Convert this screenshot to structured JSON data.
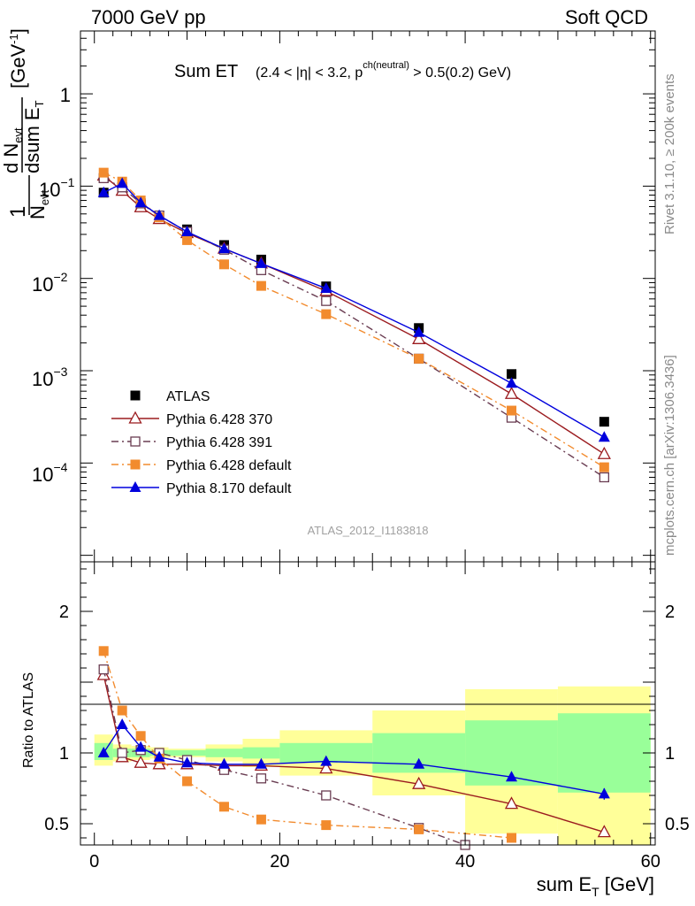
{
  "header": {
    "energy": "7000 GeV pp",
    "category": "Soft QCD"
  },
  "side_text": {
    "rivet": "Rivet 3.1.10, ≥ 200k events",
    "mcplots": "mcplots.cern.ch [arXiv:1306.3436]"
  },
  "chart_data": [
    {
      "type": "scatter",
      "panel": "main",
      "title": "Sum ET",
      "title_selection": "(2.4 < |η| < 3.2, p",
      "title_selection_super": "ch(neutral)",
      "title_selection_tail": " > 0.5(0.2) GeV)",
      "ylabel": "1/N_evt dN_evt/dsum E_T [GeV^-1]",
      "ylabel_parts": {
        "one": "1",
        "n_evt": "N",
        "evt_sub": "evt",
        "d": "d N",
        "dsum": "dsum E",
        "t_sub": "T",
        "unit": "[GeV",
        "unit_sup": "-1",
        "unit_close": "]"
      },
      "yscale": "log",
      "xlim": [
        -1.5,
        60.5
      ],
      "ylim": [
        8.5e-06,
        4.8
      ],
      "y_tick_labels": [
        {
          "value": 1,
          "text": "1"
        },
        {
          "value": 0.1,
          "base": "10",
          "exp": "−1"
        },
        {
          "value": 0.01,
          "base": "10",
          "exp": "−2"
        },
        {
          "value": 0.001,
          "base": "10",
          "exp": "−3"
        },
        {
          "value": 0.0001,
          "base": "10",
          "exp": "−4"
        }
      ],
      "watermark": "ATLAS_2012_I1183818",
      "legend_position": "bottom-left",
      "series": [
        {
          "name": "ATLAS",
          "color": "#000000",
          "marker": "square-filled",
          "line": "none",
          "x": [
            1,
            3,
            5,
            7,
            10,
            14,
            18,
            25,
            35,
            45,
            55
          ],
          "y": [
            0.085,
            0.092,
            0.063,
            0.048,
            0.034,
            0.023,
            0.016,
            0.0082,
            0.0029,
            0.00092,
            0.00028
          ]
        },
        {
          "name": "Pythia 6.428 370",
          "color": "#9b1b1f",
          "marker": "triangle-open",
          "line": "solid",
          "x": [
            1,
            3,
            5,
            7,
            10,
            14,
            18,
            25,
            35,
            45,
            55
          ],
          "y": [
            0.13,
            0.089,
            0.059,
            0.044,
            0.031,
            0.021,
            0.0145,
            0.0073,
            0.0022,
            0.00056,
            0.000125
          ]
        },
        {
          "name": "Pythia 6.428 391",
          "color": "#6a3d52",
          "marker": "square-open",
          "line": "dashdot",
          "x": [
            1,
            3,
            5,
            7,
            10,
            14,
            18,
            25,
            35,
            45,
            55
          ],
          "y": [
            0.122,
            0.097,
            0.065,
            0.048,
            0.032,
            0.0205,
            0.0123,
            0.0057,
            0.00135,
            0.00031,
            7e-05
          ]
        },
        {
          "name": "Pythia 6.428 default",
          "color": "#f28b2e",
          "marker": "square-filled",
          "line": "dashdot",
          "x": [
            1,
            3,
            5,
            7,
            10,
            14,
            18,
            25,
            35,
            45,
            55
          ],
          "y": [
            0.14,
            0.112,
            0.07,
            0.046,
            0.026,
            0.0142,
            0.0083,
            0.0041,
            0.00135,
            0.00037,
            9e-05
          ]
        },
        {
          "name": "Pythia 8.170 default",
          "color": "#0000dd",
          "marker": "triangle-filled",
          "line": "solid",
          "x": [
            1,
            3,
            5,
            7,
            10,
            14,
            18,
            25,
            35,
            45,
            55
          ],
          "y": [
            0.085,
            0.107,
            0.066,
            0.048,
            0.032,
            0.021,
            0.0145,
            0.0078,
            0.0026,
            0.00073,
            0.00019
          ]
        }
      ]
    },
    {
      "type": "scatter",
      "panel": "ratio",
      "ylabel": "Ratio to ATLAS",
      "xlabel": "sum E",
      "xlabel_sub": "T",
      "xlabel_unit": " [GeV]",
      "xlim": [
        -1.5,
        60.5
      ],
      "ylim": [
        0.35,
        2.35
      ],
      "x_ticks": [
        0,
        20,
        40,
        60
      ],
      "y_ticks": [
        0.5,
        1,
        2
      ],
      "reference_line": 1,
      "uncertainty_bands": {
        "edges": [
          0,
          2,
          4,
          6,
          8,
          12,
          16,
          20,
          30,
          40,
          50,
          60
        ],
        "inner": {
          "color": "#99ff99",
          "lower": [
            0.95,
            0.97,
            0.97,
            0.98,
            0.98,
            0.97,
            0.96,
            0.93,
            0.86,
            0.77,
            0.72
          ],
          "upper": [
            1.07,
            1.03,
            1.03,
            1.02,
            1.02,
            1.03,
            1.04,
            1.07,
            1.14,
            1.23,
            1.28
          ]
        },
        "outer": {
          "color": "#ffff99",
          "lower": [
            0.91,
            0.94,
            0.95,
            0.96,
            0.97,
            0.94,
            0.9,
            0.84,
            0.7,
            0.43,
            0.35
          ],
          "upper": [
            1.13,
            1.06,
            1.05,
            1.04,
            1.03,
            1.06,
            1.1,
            1.16,
            1.3,
            1.45,
            1.47
          ]
        }
      },
      "series": [
        {
          "name": "Pythia 6.428 370",
          "color": "#9b1b1f",
          "marker": "triangle-open",
          "line": "solid",
          "x": [
            1,
            3,
            5,
            7,
            10,
            14,
            18,
            25,
            35,
            45,
            55
          ],
          "y": [
            1.55,
            0.97,
            0.93,
            0.92,
            0.92,
            0.91,
            0.91,
            0.89,
            0.78,
            0.64,
            0.44
          ]
        },
        {
          "name": "Pythia 6.428 391",
          "color": "#6a3d52",
          "marker": "square-open",
          "line": "dashdot",
          "x": [
            1,
            3,
            5,
            7,
            10,
            14,
            18,
            25,
            35,
            40
          ],
          "y": [
            1.59,
            1.0,
            1.02,
            1.0,
            0.95,
            0.88,
            0.82,
            0.7,
            0.47,
            0.35
          ]
        },
        {
          "name": "Pythia 6.428 default",
          "color": "#f28b2e",
          "marker": "square-filled",
          "line": "dashdot",
          "x": [
            1,
            3,
            5,
            7,
            10,
            14,
            18,
            25,
            35,
            45
          ],
          "y": [
            1.72,
            1.3,
            1.12,
            0.96,
            0.8,
            0.62,
            0.53,
            0.49,
            0.46,
            0.4
          ]
        },
        {
          "name": "Pythia 8.170 default",
          "color": "#0000dd",
          "marker": "triangle-filled",
          "line": "solid",
          "x": [
            1,
            3,
            5,
            7,
            10,
            14,
            18,
            25,
            35,
            45,
            55
          ],
          "y": [
            1.0,
            1.2,
            1.04,
            0.97,
            0.93,
            0.92,
            0.92,
            0.94,
            0.92,
            0.83,
            0.71
          ]
        }
      ]
    }
  ]
}
